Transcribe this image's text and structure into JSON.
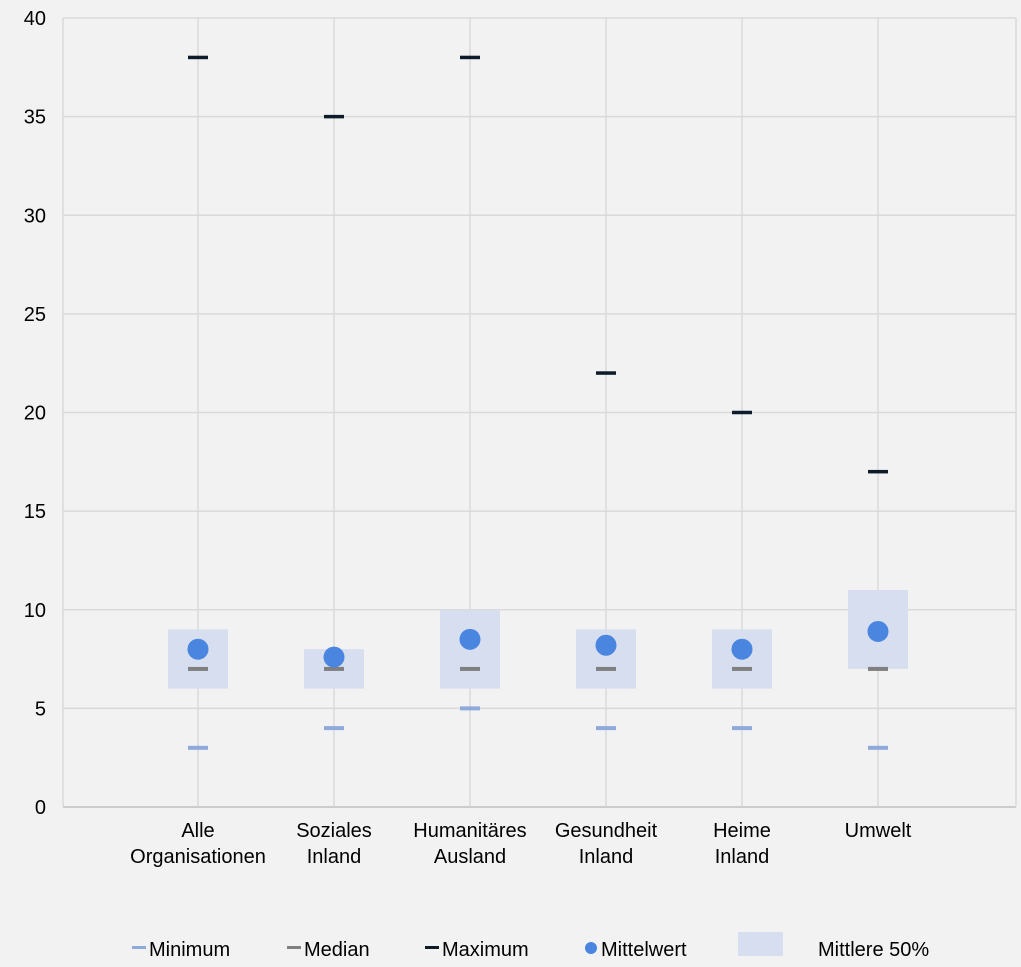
{
  "chart_data": {
    "type": "box-summary",
    "title": "",
    "xlabel": "",
    "ylabel": "",
    "ylim": [
      0,
      40
    ],
    "yticks": [
      0,
      5,
      10,
      15,
      20,
      25,
      30,
      35,
      40
    ],
    "grid": true,
    "legend_position": "bottom",
    "categories": [
      [
        "Alle",
        "Organisationen"
      ],
      [
        "Soziales",
        "Inland"
      ],
      [
        "Humanitäres",
        "Ausland"
      ],
      [
        "Gesundheit",
        "Inland"
      ],
      [
        "Heime",
        "Inland"
      ],
      [
        "Umwelt"
      ]
    ],
    "series": [
      {
        "name": "Minimum",
        "color": "#8eaadb",
        "marker": "dash",
        "values": [
          3,
          4,
          5,
          4,
          4,
          3
        ]
      },
      {
        "name": "Median",
        "color": "#7f7f7f",
        "marker": "dash",
        "values": [
          7,
          7,
          7,
          7,
          7,
          7
        ]
      },
      {
        "name": "Maximum",
        "color": "#0d1b2a",
        "marker": "dash",
        "values": [
          38,
          35,
          38,
          22,
          20,
          17
        ]
      },
      {
        "name": "Mittelwert",
        "color": "#4a86e0",
        "marker": "circle",
        "values": [
          8.0,
          7.6,
          8.5,
          8.2,
          8.0,
          8.9
        ]
      },
      {
        "name": "Mittlere 50%",
        "color": "#d6deef",
        "marker": "band",
        "low": [
          6,
          6,
          6,
          6,
          6,
          7
        ],
        "high": [
          9,
          8,
          10,
          9,
          9,
          11
        ]
      }
    ]
  }
}
